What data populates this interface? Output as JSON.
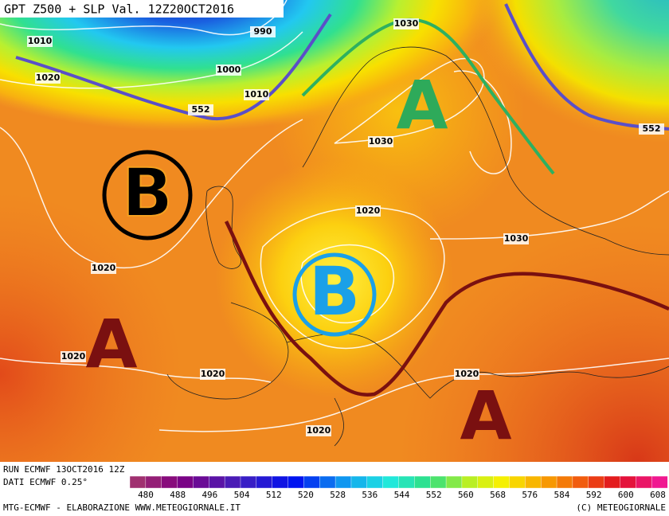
{
  "header": {
    "title": "GPT Z500 + SLP Val. 12Z20OCT2016"
  },
  "map": {
    "contour_labels": [
      "1010",
      "990",
      "1020",
      "1000",
      "1010",
      "552",
      "1030",
      "1030",
      "552",
      "1020",
      "1030",
      "1020",
      "1020",
      "1020",
      "1020",
      "1020"
    ],
    "pressure_centers": [
      "A",
      "B",
      "B",
      "A",
      "A"
    ]
  },
  "legend": {
    "ticks": [
      480,
      488,
      496,
      504,
      512,
      520,
      528,
      536,
      544,
      552,
      560,
      568,
      576,
      584,
      592,
      600,
      608
    ]
  },
  "footer": {
    "run": "RUN ECMWF 13OCT2016 12Z",
    "data": "DATI ECMWF 0.25°",
    "credit": "MTG-ECMWF - ELABORAZIONE WWW.METEOGIORNALE.IT",
    "copyright": "(C) METEOGIORNALE"
  }
}
